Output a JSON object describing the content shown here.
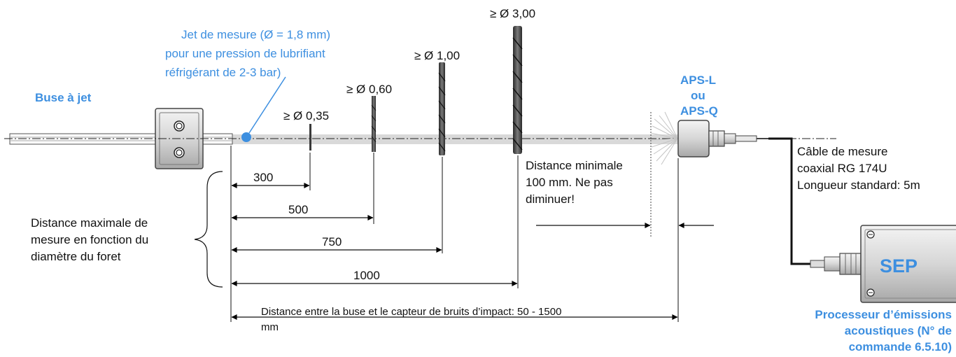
{
  "nozzle": {
    "label": "Buse à jet"
  },
  "jet": {
    "line1": "Jet de mesure   (Ø = 1,8 mm)",
    "line2": "pour une pression de lubrifiant",
    "line3": "réfrigérant de 2-3 bar)"
  },
  "drills": [
    {
      "label": "≥ Ø 0,35"
    },
    {
      "label": "≥ Ø 0,60"
    },
    {
      "label": "≥ Ø 1,00"
    },
    {
      "label": "≥ Ø 3,00"
    }
  ],
  "sensor": {
    "line1": "APS-L",
    "line2": "ou",
    "line3": "APS-Q"
  },
  "cable": {
    "line1": "Câble de mesure",
    "line2": "coaxial RG 174U",
    "line3": "Longueur standard: 5m"
  },
  "min_distance": {
    "line1": "Distance minimale",
    "line2": "100 mm. Ne pas",
    "line3": "diminuer!"
  },
  "dimensions": [
    {
      "value": "300"
    },
    {
      "value": "500"
    },
    {
      "value": "750"
    },
    {
      "value": "1000"
    }
  ],
  "max_distance": {
    "line1": "Distance maximale de",
    "line2": "mesure en fonction du",
    "line3": "diamètre du foret"
  },
  "total_distance": {
    "line1": "Distance entre la buse et le capteur de bruits d’impact: 50 - 1500",
    "line2": "mm"
  },
  "processor": {
    "box_label": "SEP",
    "line1": "Processeur d’émissions",
    "line2": "acoustiques (N° de",
    "line3": "commande 6.5.10)"
  },
  "colors": {
    "accent": "#3d8fe0"
  }
}
